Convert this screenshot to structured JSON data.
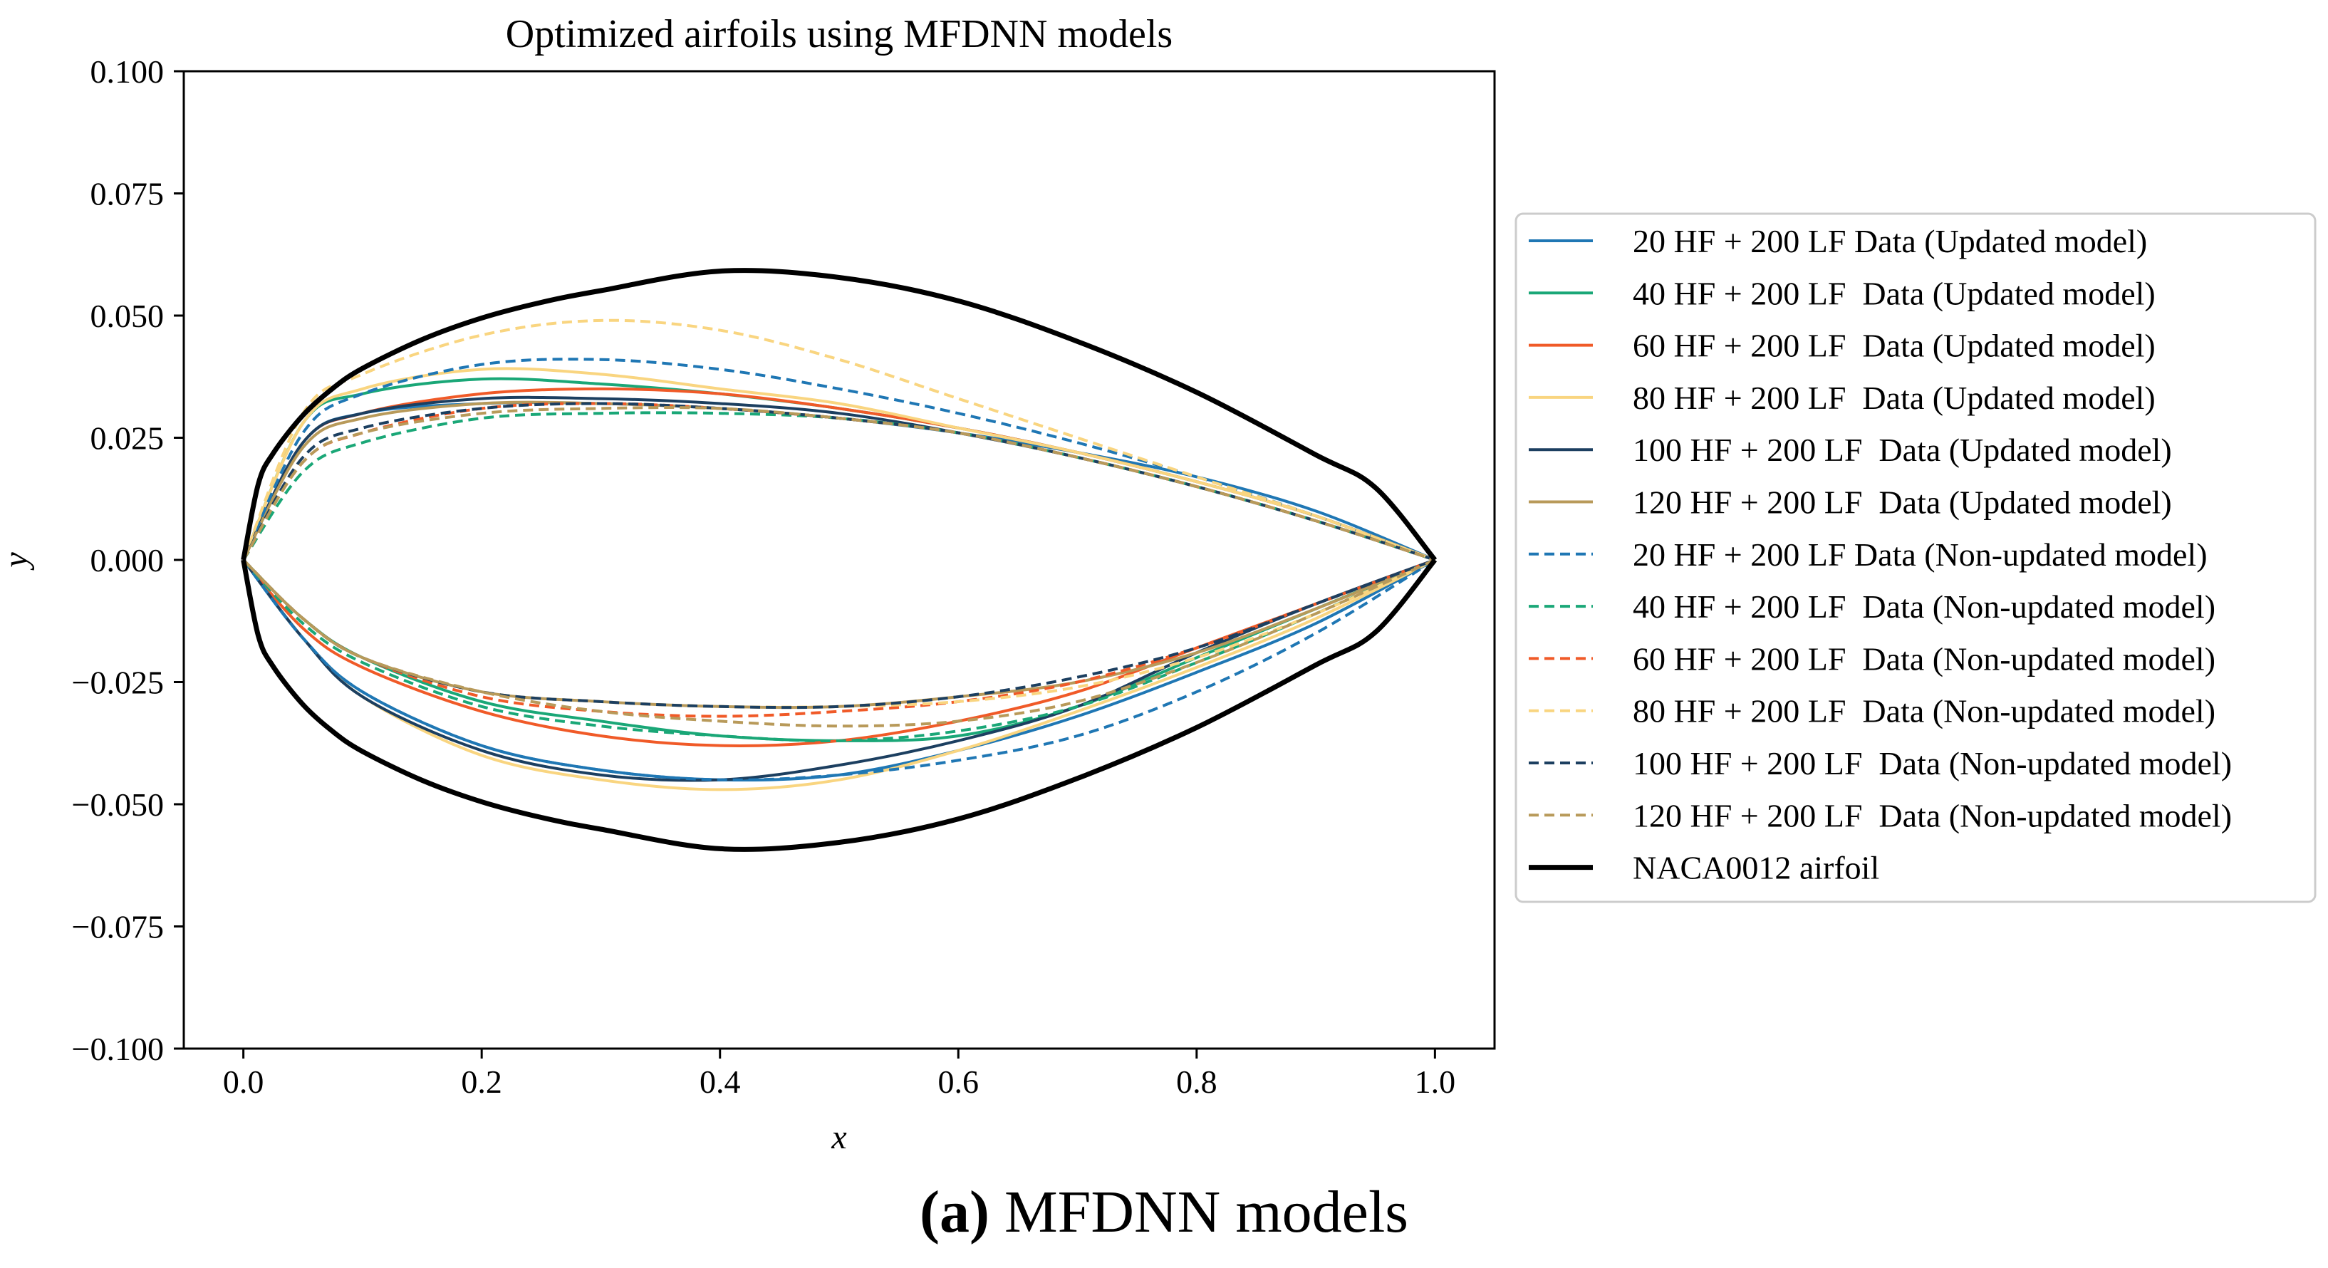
{
  "chart_data": {
    "type": "line",
    "title": "Optimized airfoils using MFDNN models",
    "xlabel": "x",
    "ylabel": "y",
    "xlim": [
      -0.05,
      1.05
    ],
    "ylim": [
      -0.1,
      0.1
    ],
    "xticks": [
      "0.0",
      "0.2",
      "0.4",
      "0.6",
      "0.8",
      "1.0"
    ],
    "xtick_values": [
      0,
      0.2,
      0.4,
      0.6,
      0.8,
      1.0
    ],
    "yticks": [
      "0.100",
      "0.075",
      "0.050",
      "0.025",
      "0.000",
      "−0.025",
      "−0.050",
      "−0.075",
      "−0.100"
    ],
    "ytick_values": [
      0.1,
      0.075,
      0.05,
      0.025,
      0,
      -0.025,
      -0.05,
      -0.075,
      -0.1
    ],
    "legend_position": "outside-right",
    "series": [
      {
        "name": "20 HF + 200 LF Data (Updated model)",
        "color": "#1f77b4",
        "style": "solid",
        "upper_x": [
          0,
          0.05,
          0.1,
          0.2,
          0.3,
          0.4,
          0.5,
          0.6,
          0.7,
          0.8,
          0.9,
          1.0
        ],
        "upper_y": [
          0,
          0.024,
          0.03,
          0.032,
          0.032,
          0.031,
          0.029,
          0.026,
          0.022,
          0.017,
          0.01,
          0
        ],
        "lower_x": [
          0,
          0.05,
          0.1,
          0.2,
          0.3,
          0.4,
          0.5,
          0.6,
          0.7,
          0.8,
          0.9,
          1.0
        ],
        "lower_y": [
          0,
          -0.016,
          -0.027,
          -0.038,
          -0.043,
          -0.045,
          -0.044,
          -0.039,
          -0.032,
          -0.023,
          -0.013,
          0
        ]
      },
      {
        "name": "40 HF + 200 LF  Data (Updated model)",
        "color": "#1aa777",
        "style": "solid",
        "upper_x": [
          0,
          0.05,
          0.1,
          0.2,
          0.3,
          0.4,
          0.5,
          0.6,
          0.7,
          0.8,
          0.9,
          1.0
        ],
        "upper_y": [
          0,
          0.028,
          0.034,
          0.037,
          0.036,
          0.034,
          0.031,
          0.027,
          0.022,
          0.016,
          0.009,
          0
        ],
        "lower_x": [
          0,
          0.05,
          0.1,
          0.2,
          0.3,
          0.4,
          0.5,
          0.6,
          0.7,
          0.8,
          0.9,
          1.0
        ],
        "lower_y": [
          0,
          -0.012,
          -0.02,
          -0.029,
          -0.033,
          -0.036,
          -0.037,
          -0.036,
          -0.03,
          -0.02,
          -0.01,
          0
        ]
      },
      {
        "name": "60 HF + 200 LF  Data (Updated model)",
        "color": "#f05a28",
        "style": "solid",
        "upper_x": [
          0,
          0.05,
          0.1,
          0.2,
          0.3,
          0.4,
          0.5,
          0.6,
          0.7,
          0.8,
          0.9,
          1.0
        ],
        "upper_y": [
          0,
          0.024,
          0.03,
          0.034,
          0.035,
          0.034,
          0.031,
          0.027,
          0.022,
          0.016,
          0.009,
          0
        ],
        "lower_x": [
          0,
          0.05,
          0.1,
          0.2,
          0.3,
          0.4,
          0.5,
          0.6,
          0.7,
          0.8,
          0.9,
          1.0
        ],
        "lower_y": [
          0,
          -0.014,
          -0.022,
          -0.031,
          -0.036,
          -0.038,
          -0.037,
          -0.033,
          -0.027,
          -0.018,
          -0.009,
          0
        ]
      },
      {
        "name": "80 HF + 200 LF  Data (Updated model)",
        "color": "#f9d580",
        "style": "solid",
        "upper_x": [
          0,
          0.05,
          0.1,
          0.2,
          0.3,
          0.4,
          0.5,
          0.6,
          0.7,
          0.8,
          0.9,
          1.0
        ],
        "upper_y": [
          0,
          0.028,
          0.035,
          0.039,
          0.038,
          0.035,
          0.032,
          0.027,
          0.022,
          0.016,
          0.009,
          0
        ],
        "lower_x": [
          0,
          0.05,
          0.1,
          0.2,
          0.3,
          0.4,
          0.5,
          0.6,
          0.7,
          0.8,
          0.9,
          1.0
        ],
        "lower_y": [
          0,
          -0.016,
          -0.028,
          -0.04,
          -0.045,
          -0.047,
          -0.045,
          -0.039,
          -0.031,
          -0.022,
          -0.012,
          0
        ]
      },
      {
        "name": "100 HF + 200 LF  Data (Updated model)",
        "color": "#1c3f60",
        "style": "solid",
        "upper_x": [
          0,
          0.05,
          0.1,
          0.2,
          0.3,
          0.4,
          0.5,
          0.6,
          0.7,
          0.8,
          0.9,
          1.0
        ],
        "upper_y": [
          0,
          0.024,
          0.03,
          0.033,
          0.033,
          0.032,
          0.03,
          0.026,
          0.021,
          0.015,
          0.008,
          0
        ],
        "lower_x": [
          0,
          0.05,
          0.1,
          0.2,
          0.3,
          0.4,
          0.5,
          0.6,
          0.7,
          0.8,
          0.9,
          1.0
        ],
        "lower_y": [
          0,
          -0.016,
          -0.028,
          -0.039,
          -0.044,
          -0.045,
          -0.042,
          -0.037,
          -0.03,
          -0.019,
          -0.009,
          0
        ]
      },
      {
        "name": "120 HF + 200 LF  Data (Updated model)",
        "color": "#b89a5a",
        "style": "solid",
        "upper_x": [
          0,
          0.05,
          0.1,
          0.2,
          0.3,
          0.4,
          0.5,
          0.6,
          0.7,
          0.8,
          0.9,
          1.0
        ],
        "upper_y": [
          0,
          0.023,
          0.029,
          0.032,
          0.032,
          0.031,
          0.029,
          0.026,
          0.021,
          0.015,
          0.008,
          0
        ],
        "lower_x": [
          0,
          0.05,
          0.1,
          0.2,
          0.3,
          0.4,
          0.5,
          0.6,
          0.7,
          0.8,
          0.9,
          1.0
        ],
        "lower_y": [
          0,
          -0.012,
          -0.02,
          -0.027,
          -0.029,
          -0.03,
          -0.03,
          -0.028,
          -0.025,
          -0.019,
          -0.01,
          0
        ]
      },
      {
        "name": "20 HF + 200 LF Data (Non-updated model)",
        "color": "#1f77b4",
        "style": "dashed",
        "upper_x": [
          0,
          0.05,
          0.1,
          0.2,
          0.3,
          0.4,
          0.5,
          0.6,
          0.7,
          0.8,
          0.9,
          1.0
        ],
        "upper_y": [
          0,
          0.026,
          0.034,
          0.04,
          0.041,
          0.039,
          0.035,
          0.03,
          0.024,
          0.017,
          0.009,
          0
        ],
        "lower_x": [
          0,
          0.05,
          0.1,
          0.2,
          0.3,
          0.4,
          0.5,
          0.6,
          0.7,
          0.8,
          0.9,
          1.0
        ],
        "lower_y": [
          0,
          -0.016,
          -0.027,
          -0.038,
          -0.043,
          -0.045,
          -0.044,
          -0.041,
          -0.036,
          -0.027,
          -0.015,
          0
        ]
      },
      {
        "name": "40 HF + 200 LF  Data (Non-updated model)",
        "color": "#1aa777",
        "style": "dashed",
        "upper_x": [
          0,
          0.05,
          0.1,
          0.2,
          0.3,
          0.4,
          0.5,
          0.6,
          0.7,
          0.8,
          0.9,
          1.0
        ],
        "upper_y": [
          0,
          0.018,
          0.024,
          0.029,
          0.03,
          0.03,
          0.029,
          0.026,
          0.021,
          0.015,
          0.008,
          0
        ],
        "lower_x": [
          0,
          0.05,
          0.1,
          0.2,
          0.3,
          0.4,
          0.5,
          0.6,
          0.7,
          0.8,
          0.9,
          1.0
        ],
        "lower_y": [
          0,
          -0.013,
          -0.021,
          -0.03,
          -0.034,
          -0.036,
          -0.037,
          -0.035,
          -0.03,
          -0.021,
          -0.011,
          0
        ]
      },
      {
        "name": "60 HF + 200 LF  Data (Non-updated model)",
        "color": "#f05a28",
        "style": "dashed",
        "upper_x": [
          0,
          0.05,
          0.1,
          0.2,
          0.3,
          0.4,
          0.5,
          0.6,
          0.7,
          0.8,
          0.9,
          1.0
        ],
        "upper_y": [
          0,
          0.02,
          0.026,
          0.031,
          0.032,
          0.031,
          0.029,
          0.026,
          0.021,
          0.015,
          0.008,
          0
        ],
        "lower_x": [
          0,
          0.05,
          0.1,
          0.2,
          0.3,
          0.4,
          0.5,
          0.6,
          0.7,
          0.8,
          0.9,
          1.0
        ],
        "lower_y": [
          0,
          -0.012,
          -0.02,
          -0.028,
          -0.031,
          -0.032,
          -0.031,
          -0.029,
          -0.025,
          -0.018,
          -0.009,
          0
        ]
      },
      {
        "name": "80 HF + 200 LF  Data (Non-updated model)",
        "color": "#f9d580",
        "style": "dashed",
        "upper_x": [
          0,
          0.05,
          0.1,
          0.2,
          0.3,
          0.4,
          0.5,
          0.6,
          0.7,
          0.8,
          0.9,
          1.0
        ],
        "upper_y": [
          0,
          0.03,
          0.038,
          0.046,
          0.049,
          0.047,
          0.041,
          0.033,
          0.025,
          0.017,
          0.009,
          0
        ],
        "lower_x": [
          0,
          0.05,
          0.1,
          0.2,
          0.3,
          0.4,
          0.5,
          0.6,
          0.7,
          0.8,
          0.9,
          1.0
        ],
        "lower_y": [
          0,
          -0.012,
          -0.02,
          -0.027,
          -0.029,
          -0.03,
          -0.03,
          -0.029,
          -0.026,
          -0.02,
          -0.011,
          0
        ]
      },
      {
        "name": "100 HF + 200 LF  Data (Non-updated model)",
        "color": "#1c3f60",
        "style": "dashed",
        "upper_x": [
          0,
          0.05,
          0.1,
          0.2,
          0.3,
          0.4,
          0.5,
          0.6,
          0.7,
          0.8,
          0.9,
          1.0
        ],
        "upper_y": [
          0,
          0.021,
          0.027,
          0.031,
          0.032,
          0.031,
          0.029,
          0.026,
          0.021,
          0.015,
          0.008,
          0
        ],
        "lower_x": [
          0,
          0.05,
          0.1,
          0.2,
          0.3,
          0.4,
          0.5,
          0.6,
          0.7,
          0.8,
          0.9,
          1.0
        ],
        "lower_y": [
          0,
          -0.012,
          -0.02,
          -0.027,
          -0.029,
          -0.03,
          -0.03,
          -0.028,
          -0.024,
          -0.018,
          -0.009,
          0
        ]
      },
      {
        "name": "120 HF + 200 LF  Data (Non-updated model)",
        "color": "#b89a5a",
        "style": "dashed",
        "upper_x": [
          0,
          0.05,
          0.1,
          0.2,
          0.3,
          0.4,
          0.5,
          0.6,
          0.7,
          0.8,
          0.9,
          1.0
        ],
        "upper_y": [
          0,
          0.02,
          0.026,
          0.03,
          0.031,
          0.031,
          0.029,
          0.026,
          0.021,
          0.015,
          0.008,
          0
        ],
        "lower_x": [
          0,
          0.05,
          0.1,
          0.2,
          0.3,
          0.4,
          0.5,
          0.6,
          0.7,
          0.8,
          0.9,
          1.0
        ],
        "lower_y": [
          0,
          -0.012,
          -0.02,
          -0.027,
          -0.031,
          -0.033,
          -0.034,
          -0.033,
          -0.029,
          -0.021,
          -0.011,
          0
        ]
      },
      {
        "name": "NACA0012 airfoil",
        "color": "#000000",
        "style": "solid-thick",
        "upper_x": [
          0,
          0.0125,
          0.025,
          0.05,
          0.075,
          0.1,
          0.15,
          0.2,
          0.25,
          0.3,
          0.4,
          0.5,
          0.6,
          0.7,
          0.8,
          0.9,
          0.95,
          1.0
        ],
        "upper_y": [
          0,
          0.0155,
          0.0218,
          0.0296,
          0.0351,
          0.0392,
          0.0451,
          0.0495,
          0.0527,
          0.0551,
          0.0591,
          0.0578,
          0.053,
          0.0447,
          0.0343,
          0.0215,
          0.0148,
          0
        ],
        "lower_x": [
          0,
          0.0125,
          0.025,
          0.05,
          0.075,
          0.1,
          0.15,
          0.2,
          0.25,
          0.3,
          0.4,
          0.5,
          0.6,
          0.7,
          0.8,
          0.9,
          0.95,
          1.0
        ],
        "lower_y": [
          0,
          -0.0155,
          -0.0218,
          -0.0296,
          -0.0351,
          -0.0392,
          -0.0451,
          -0.0495,
          -0.0527,
          -0.0551,
          -0.0591,
          -0.0578,
          -0.053,
          -0.0447,
          -0.0343,
          -0.0215,
          -0.0148,
          0
        ]
      }
    ]
  },
  "caption": {
    "letter": "(a)",
    "text": " MFDNN models"
  }
}
